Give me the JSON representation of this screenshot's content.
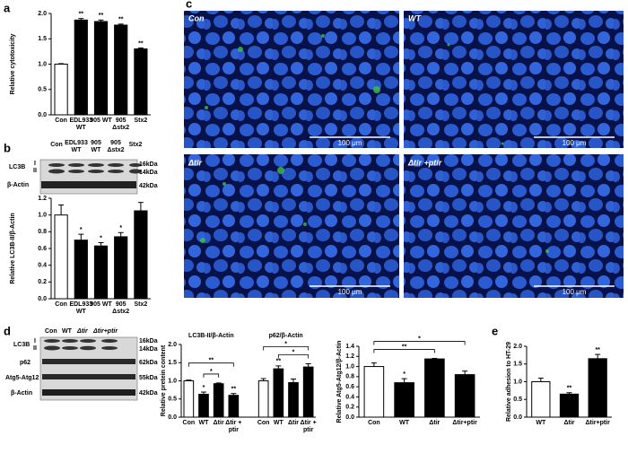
{
  "panel_labels": [
    "a",
    "b",
    "c",
    "d",
    "e"
  ],
  "blot_b": {
    "columns": [
      "Con",
      "EDL933 WT",
      "905 WT",
      "905 Δstx2",
      "Stx2"
    ],
    "rows": [
      "LC3B",
      "β-Actin"
    ],
    "forms": [
      "I",
      "II"
    ],
    "sizes": [
      "16kDa",
      "14kDa",
      "42kDa"
    ]
  },
  "micrographs": [
    {
      "label": "Con",
      "scale": "100 μm"
    },
    {
      "label": "WT",
      "scale": "100 μm"
    },
    {
      "label": "Δtir",
      "scale": "100 μm"
    },
    {
      "label": "Δtir +ptir",
      "scale": "100 μm"
    }
  ],
  "blot_d": {
    "columns": [
      "Con",
      "WT",
      "Δtir",
      "Δtir+ptir"
    ],
    "rows": [
      "LC3B",
      "p62",
      "Atg5-Atg12",
      "β-Actin"
    ],
    "forms": [
      "I",
      "II"
    ],
    "sizes": [
      "16kDa",
      "14kDa",
      "62kDa",
      "55kDa",
      "42kDa"
    ]
  },
  "chart_data": [
    {
      "type": "bar",
      "y_label": "Relative cytotoxicity",
      "categories": [
        "Con",
        "EDL933 WT",
        "905 WT",
        "905 Δstx2",
        "Stx2"
      ],
      "values": [
        1.0,
        1.87,
        1.84,
        1.77,
        1.3
      ],
      "errors": [
        0.01,
        0.03,
        0.03,
        0.02,
        0.02
      ],
      "annotations": [
        null,
        "**",
        "**",
        "**",
        "**"
      ],
      "bar_colors": [
        "#ffffff",
        "#000000",
        "#000000",
        "#000000",
        "#000000"
      ],
      "ylim": [
        0,
        2
      ],
      "yticks": [
        {
          "value": 0,
          "label": "0.0"
        },
        0.5,
        {
          "value": 1,
          "label": "1.0"
        },
        1.5,
        {
          "value": 2,
          "label": "2.0"
        }
      ]
    },
    {
      "type": "bar",
      "y_label": "Relative LC3B-II/β-Actin",
      "categories": [
        "Con",
        "EDL933 WT",
        "905 WT",
        "905 Δstx2",
        "Stx2"
      ],
      "values": [
        1.0,
        0.7,
        0.63,
        0.74,
        1.05
      ],
      "errors": [
        0.12,
        0.07,
        0.04,
        0.05,
        0.1
      ],
      "annotations": [
        null,
        "*",
        "*",
        "*",
        null
      ],
      "bar_colors": [
        "#ffffff",
        "#000000",
        "#000000",
        "#000000",
        "#000000"
      ],
      "ylim": [
        0,
        1.2
      ],
      "yticks": [
        {
          "value": 0,
          "label": "0.0"
        },
        0.2,
        0.4,
        0.6,
        0.8,
        {
          "value": 1,
          "label": "1.0"
        },
        1.2
      ]
    },
    {
      "type": "bar",
      "y_label": "Relative pretein content",
      "categories": [
        "Con",
        "WT",
        "Δtir",
        "Δtir + ptir"
      ],
      "bar_colors": [
        "#ffffff",
        "#000000",
        "#000000",
        "#000000"
      ],
      "series": [
        {
          "name": "LC3B-II/β-Actin",
          "values": [
            1.0,
            0.63,
            0.92,
            0.6
          ],
          "errors": [
            0.02,
            0.06,
            0.02,
            0.05
          ],
          "annotations": [
            null,
            "*",
            null,
            "**"
          ],
          "brackets": [
            {
              "from": 1,
              "to": 2,
              "text": "*"
            },
            {
              "from": 0,
              "to": 3,
              "text": "**"
            }
          ]
        },
        {
          "name": "p62/β-Actin",
          "values": [
            1.0,
            1.33,
            0.95,
            1.38
          ],
          "errors": [
            0.06,
            0.08,
            0.1,
            0.09
          ],
          "annotations": [
            null,
            "**",
            null,
            null
          ],
          "brackets": [
            {
              "from": 1,
              "to": 3,
              "text": "*"
            },
            {
              "from": 0,
              "to": 3,
              "text": "*"
            }
          ]
        }
      ],
      "ylim": [
        0,
        2
      ],
      "yticks": [
        {
          "value": 0,
          "label": "0.0"
        },
        0.5,
        {
          "value": 1,
          "label": "1.0"
        },
        1.5,
        {
          "value": 2,
          "label": "2.0"
        }
      ]
    },
    {
      "type": "bar",
      "y_label": "Relative Atg5-Atg12/β-Actin",
      "categories": [
        "Con",
        "WT",
        "Δtir",
        "Δtir+ptir"
      ],
      "values": [
        1.0,
        0.68,
        1.15,
        0.84
      ],
      "errors": [
        0.07,
        0.08,
        0.01,
        0.07
      ],
      "annotations": [
        null,
        "*",
        null,
        null
      ],
      "brackets": [
        {
          "from": 0,
          "to": 2,
          "text": "**"
        },
        {
          "from": 0,
          "to": 3,
          "text": "*"
        }
      ],
      "bar_colors": [
        "#ffffff",
        "#000000",
        "#000000",
        "#000000"
      ],
      "ylim": [
        0,
        1.4
      ],
      "yticks": [
        {
          "value": 0,
          "label": "0.0"
        },
        0.2,
        0.4,
        0.6,
        0.8,
        {
          "value": 1,
          "label": "1.0"
        },
        1.2,
        1.4
      ]
    },
    {
      "type": "bar",
      "y_label": "Relative adhesion to HT-29",
      "categories": [
        "WT",
        "Δtir",
        "Δtir+ptir"
      ],
      "values": [
        1.0,
        0.65,
        1.65
      ],
      "errors": [
        0.1,
        0.04,
        0.12
      ],
      "annotations": [
        null,
        "**",
        "**"
      ],
      "bar_colors": [
        "#ffffff",
        "#000000",
        "#000000"
      ],
      "ylim": [
        0,
        2
      ],
      "yticks": [
        {
          "value": 0,
          "label": "0.0"
        },
        0.5,
        {
          "value": 1,
          "label": "1.0"
        },
        1.5,
        {
          "value": 2,
          "label": "2.0"
        }
      ]
    }
  ]
}
